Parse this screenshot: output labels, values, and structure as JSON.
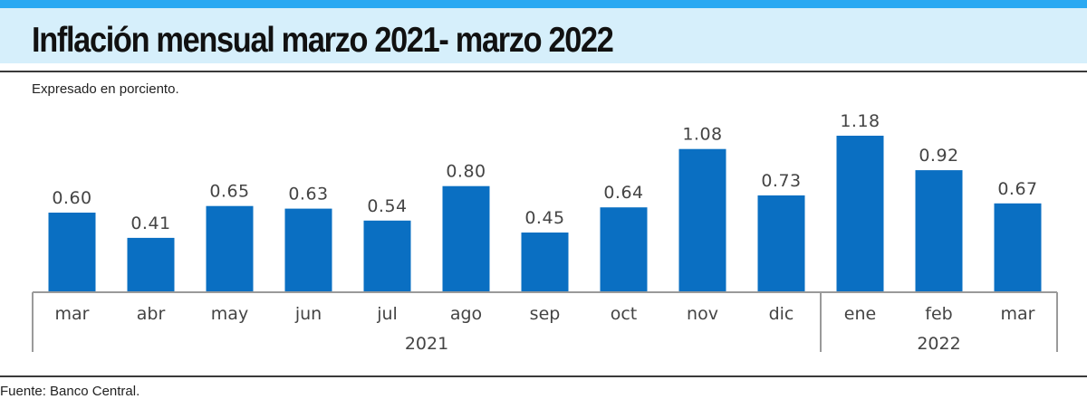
{
  "header": {
    "title": "Inflación mensual marzo 2021- marzo 2022",
    "subtitle": "Expresado en porciento.",
    "source": "Fuente: Banco Central."
  },
  "colors": {
    "bar": "#0a6fc2",
    "accent": "#2aa9f2",
    "title_band": "#d6effb",
    "axis": "#9a9a9a",
    "text": "#444444"
  },
  "chart_data": {
    "type": "bar",
    "title": "Inflación mensual marzo 2021- marzo 2022",
    "ylabel": "Expresado en porciento.",
    "categories": [
      "mar",
      "abr",
      "may",
      "jun",
      "jul",
      "ago",
      "sep",
      "oct",
      "nov",
      "dic",
      "ene",
      "feb",
      "mar"
    ],
    "values": [
      0.6,
      0.41,
      0.65,
      0.63,
      0.54,
      0.8,
      0.45,
      0.64,
      1.08,
      0.73,
      1.18,
      0.92,
      0.67
    ],
    "value_labels": [
      "0.60",
      "0.41",
      "0.65",
      "0.63",
      "0.54",
      "0.80",
      "0.45",
      "0.64",
      "1.08",
      "0.73",
      "1.18",
      "0.92",
      "0.67"
    ],
    "year_groups": [
      {
        "label": "2021",
        "count": 10
      },
      {
        "label": "2022",
        "count": 3
      }
    ],
    "ylim": [
      0,
      1.18
    ],
    "grid": false,
    "legend": "none"
  }
}
